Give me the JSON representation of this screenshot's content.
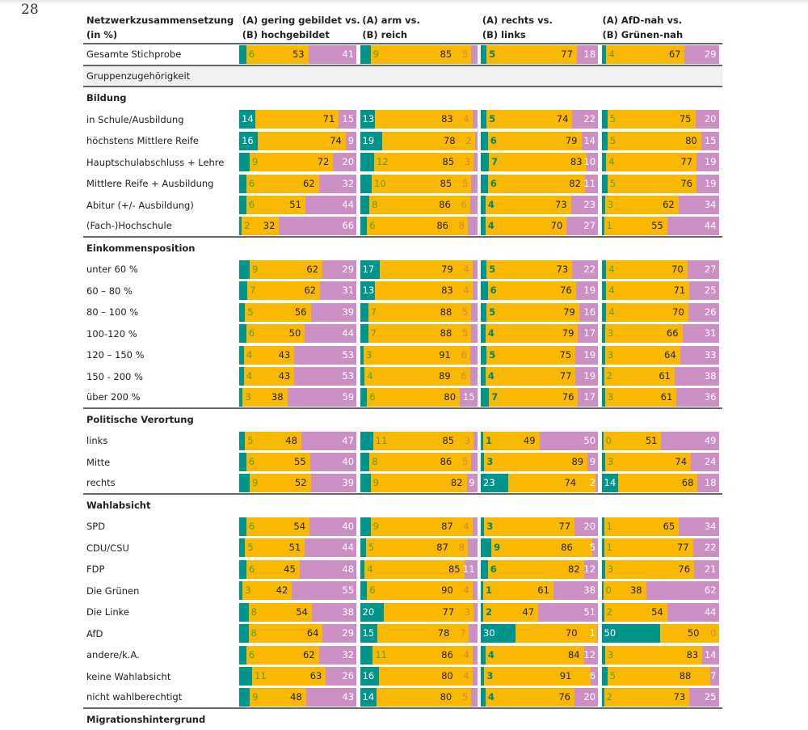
{
  "page_number": "28",
  "chart_data": {
    "type": "table",
    "colors": {
      "A": "#00958a",
      "neutral": "#fbb800",
      "B": "#cc8fc4"
    },
    "header": {
      "label_line1": "Netzwerkzusammensetzung",
      "label_line2": "(in %)",
      "columns": [
        {
          "line1": "(A) gering gebildet vs.",
          "line2": "(B) hochgebildet"
        },
        {
          "line1": "(A) arm vs.",
          "line2": "(B) reich"
        },
        {
          "line1": "(A) rechts vs.",
          "line2": "(B) links"
        },
        {
          "line1": "(A) AfD-nah vs.",
          "line2": "(B) Grünen-nah"
        }
      ]
    },
    "rows": [
      {
        "label": "Gesamte Stichprobe",
        "values": [
          [
            6,
            53,
            41
          ],
          [
            9,
            85,
            5
          ],
          [
            5,
            77,
            18
          ],
          [
            4,
            67,
            29
          ]
        ],
        "sep": true
      },
      {
        "label": "Gruppenzugehörigkeit",
        "kind": "group",
        "sep": true
      },
      {
        "label": "Bildung",
        "kind": "section"
      },
      {
        "label": "in Schule/Ausbildung",
        "values": [
          [
            14,
            71,
            15
          ],
          [
            13,
            83,
            4
          ],
          [
            5,
            74,
            22
          ],
          [
            5,
            75,
            20
          ]
        ]
      },
      {
        "label": "höchstens Mittlere Reife",
        "values": [
          [
            16,
            74,
            9
          ],
          [
            19,
            78,
            2
          ],
          [
            6,
            79,
            14
          ],
          [
            5,
            80,
            15
          ]
        ]
      },
      {
        "label": "Hauptschulabschluss + Lehre",
        "values": [
          [
            9,
            72,
            20
          ],
          [
            12,
            85,
            3
          ],
          [
            7,
            83,
            10
          ],
          [
            4,
            77,
            19
          ]
        ]
      },
      {
        "label": "Mittlere Reife + Ausbildung",
        "values": [
          [
            6,
            62,
            32
          ],
          [
            10,
            85,
            5
          ],
          [
            6,
            82,
            11
          ],
          [
            5,
            76,
            19
          ]
        ]
      },
      {
        "label": "Abitur (+/- Ausbildung)",
        "values": [
          [
            6,
            51,
            44
          ],
          [
            8,
            86,
            6
          ],
          [
            4,
            73,
            23
          ],
          [
            3,
            62,
            34
          ]
        ]
      },
      {
        "label": "(Fach-)Hochschule",
        "values": [
          [
            2,
            32,
            66
          ],
          [
            6,
            86,
            8
          ],
          [
            4,
            70,
            27
          ],
          [
            1,
            55,
            44
          ]
        ],
        "sep": true
      },
      {
        "label": "Einkommensposition",
        "kind": "section"
      },
      {
        "label": "unter 60 %",
        "values": [
          [
            9,
            62,
            29
          ],
          [
            17,
            79,
            4
          ],
          [
            5,
            73,
            22
          ],
          [
            4,
            70,
            27
          ]
        ]
      },
      {
        "label": "60 – 80 %",
        "values": [
          [
            7,
            62,
            31
          ],
          [
            13,
            83,
            4
          ],
          [
            6,
            76,
            19
          ],
          [
            4,
            71,
            25
          ]
        ]
      },
      {
        "label": "80 – 100 %",
        "values": [
          [
            5,
            56,
            39
          ],
          [
            7,
            88,
            5
          ],
          [
            5,
            79,
            16
          ],
          [
            4,
            70,
            26
          ]
        ]
      },
      {
        "label": "100-120 %",
        "values": [
          [
            6,
            50,
            44
          ],
          [
            7,
            88,
            5
          ],
          [
            4,
            79,
            17
          ],
          [
            3,
            66,
            31
          ]
        ]
      },
      {
        "label": "120 – 150 %",
        "values": [
          [
            4,
            43,
            53
          ],
          [
            3,
            91,
            6
          ],
          [
            5,
            75,
            19
          ],
          [
            3,
            64,
            33
          ]
        ]
      },
      {
        "label": "150 - 200 %",
        "values": [
          [
            4,
            43,
            53
          ],
          [
            4,
            89,
            6
          ],
          [
            4,
            77,
            19
          ],
          [
            2,
            61,
            38
          ]
        ]
      },
      {
        "label": "über 200 %",
        "values": [
          [
            3,
            38,
            59
          ],
          [
            6,
            80,
            15
          ],
          [
            7,
            76,
            17
          ],
          [
            3,
            61,
            36
          ]
        ],
        "sep": true
      },
      {
        "label": "Politische Verortung",
        "kind": "section"
      },
      {
        "label": "links",
        "values": [
          [
            5,
            48,
            47
          ],
          [
            11,
            85,
            3
          ],
          [
            1,
            49,
            50
          ],
          [
            0,
            51,
            49
          ]
        ]
      },
      {
        "label": "Mitte",
        "values": [
          [
            6,
            55,
            40
          ],
          [
            8,
            86,
            5
          ],
          [
            3,
            89,
            9
          ],
          [
            3,
            74,
            24
          ]
        ]
      },
      {
        "label": "rechts",
        "values": [
          [
            9,
            52,
            39
          ],
          [
            9,
            82,
            9
          ],
          [
            23,
            74,
            2
          ],
          [
            14,
            68,
            18
          ]
        ],
        "sep": true
      },
      {
        "label": "Wahlabsicht",
        "kind": "section"
      },
      {
        "label": "SPD",
        "values": [
          [
            6,
            54,
            40
          ],
          [
            9,
            87,
            4
          ],
          [
            3,
            77,
            20
          ],
          [
            1,
            65,
            34
          ]
        ]
      },
      {
        "label": "CDU/CSU",
        "values": [
          [
            5,
            51,
            44
          ],
          [
            5,
            87,
            8
          ],
          [
            9,
            86,
            5
          ],
          [
            1,
            77,
            22
          ]
        ]
      },
      {
        "label": "FDP",
        "values": [
          [
            6,
            45,
            48
          ],
          [
            4,
            85,
            11
          ],
          [
            6,
            82,
            12
          ],
          [
            3,
            76,
            21
          ]
        ]
      },
      {
        "label": "Die Grünen",
        "values": [
          [
            3,
            42,
            55
          ],
          [
            6,
            90,
            4
          ],
          [
            1,
            61,
            38
          ],
          [
            0,
            38,
            62
          ]
        ]
      },
      {
        "label": "Die Linke",
        "values": [
          [
            8,
            54,
            38
          ],
          [
            20,
            77,
            3
          ],
          [
            2,
            47,
            51
          ],
          [
            2,
            54,
            44
          ]
        ]
      },
      {
        "label": "AfD",
        "values": [
          [
            8,
            64,
            29
          ],
          [
            15,
            78,
            7
          ],
          [
            30,
            70,
            1
          ],
          [
            50,
            50,
            0
          ]
        ]
      },
      {
        "label": "andere/k.A.",
        "values": [
          [
            6,
            62,
            32
          ],
          [
            11,
            86,
            4
          ],
          [
            4,
            84,
            12
          ],
          [
            3,
            83,
            14
          ]
        ]
      },
      {
        "label": "keine Wahlabsicht",
        "values": [
          [
            11,
            63,
            26
          ],
          [
            16,
            80,
            4
          ],
          [
            3,
            91,
            6
          ],
          [
            5,
            88,
            7
          ]
        ]
      },
      {
        "label": "nicht wahlberechtigt",
        "values": [
          [
            9,
            48,
            43
          ],
          [
            14,
            80,
            5
          ],
          [
            4,
            76,
            20
          ],
          [
            2,
            73,
            25
          ]
        ],
        "sep": true
      },
      {
        "label": "Migrationshintergrund",
        "kind": "section"
      }
    ]
  }
}
